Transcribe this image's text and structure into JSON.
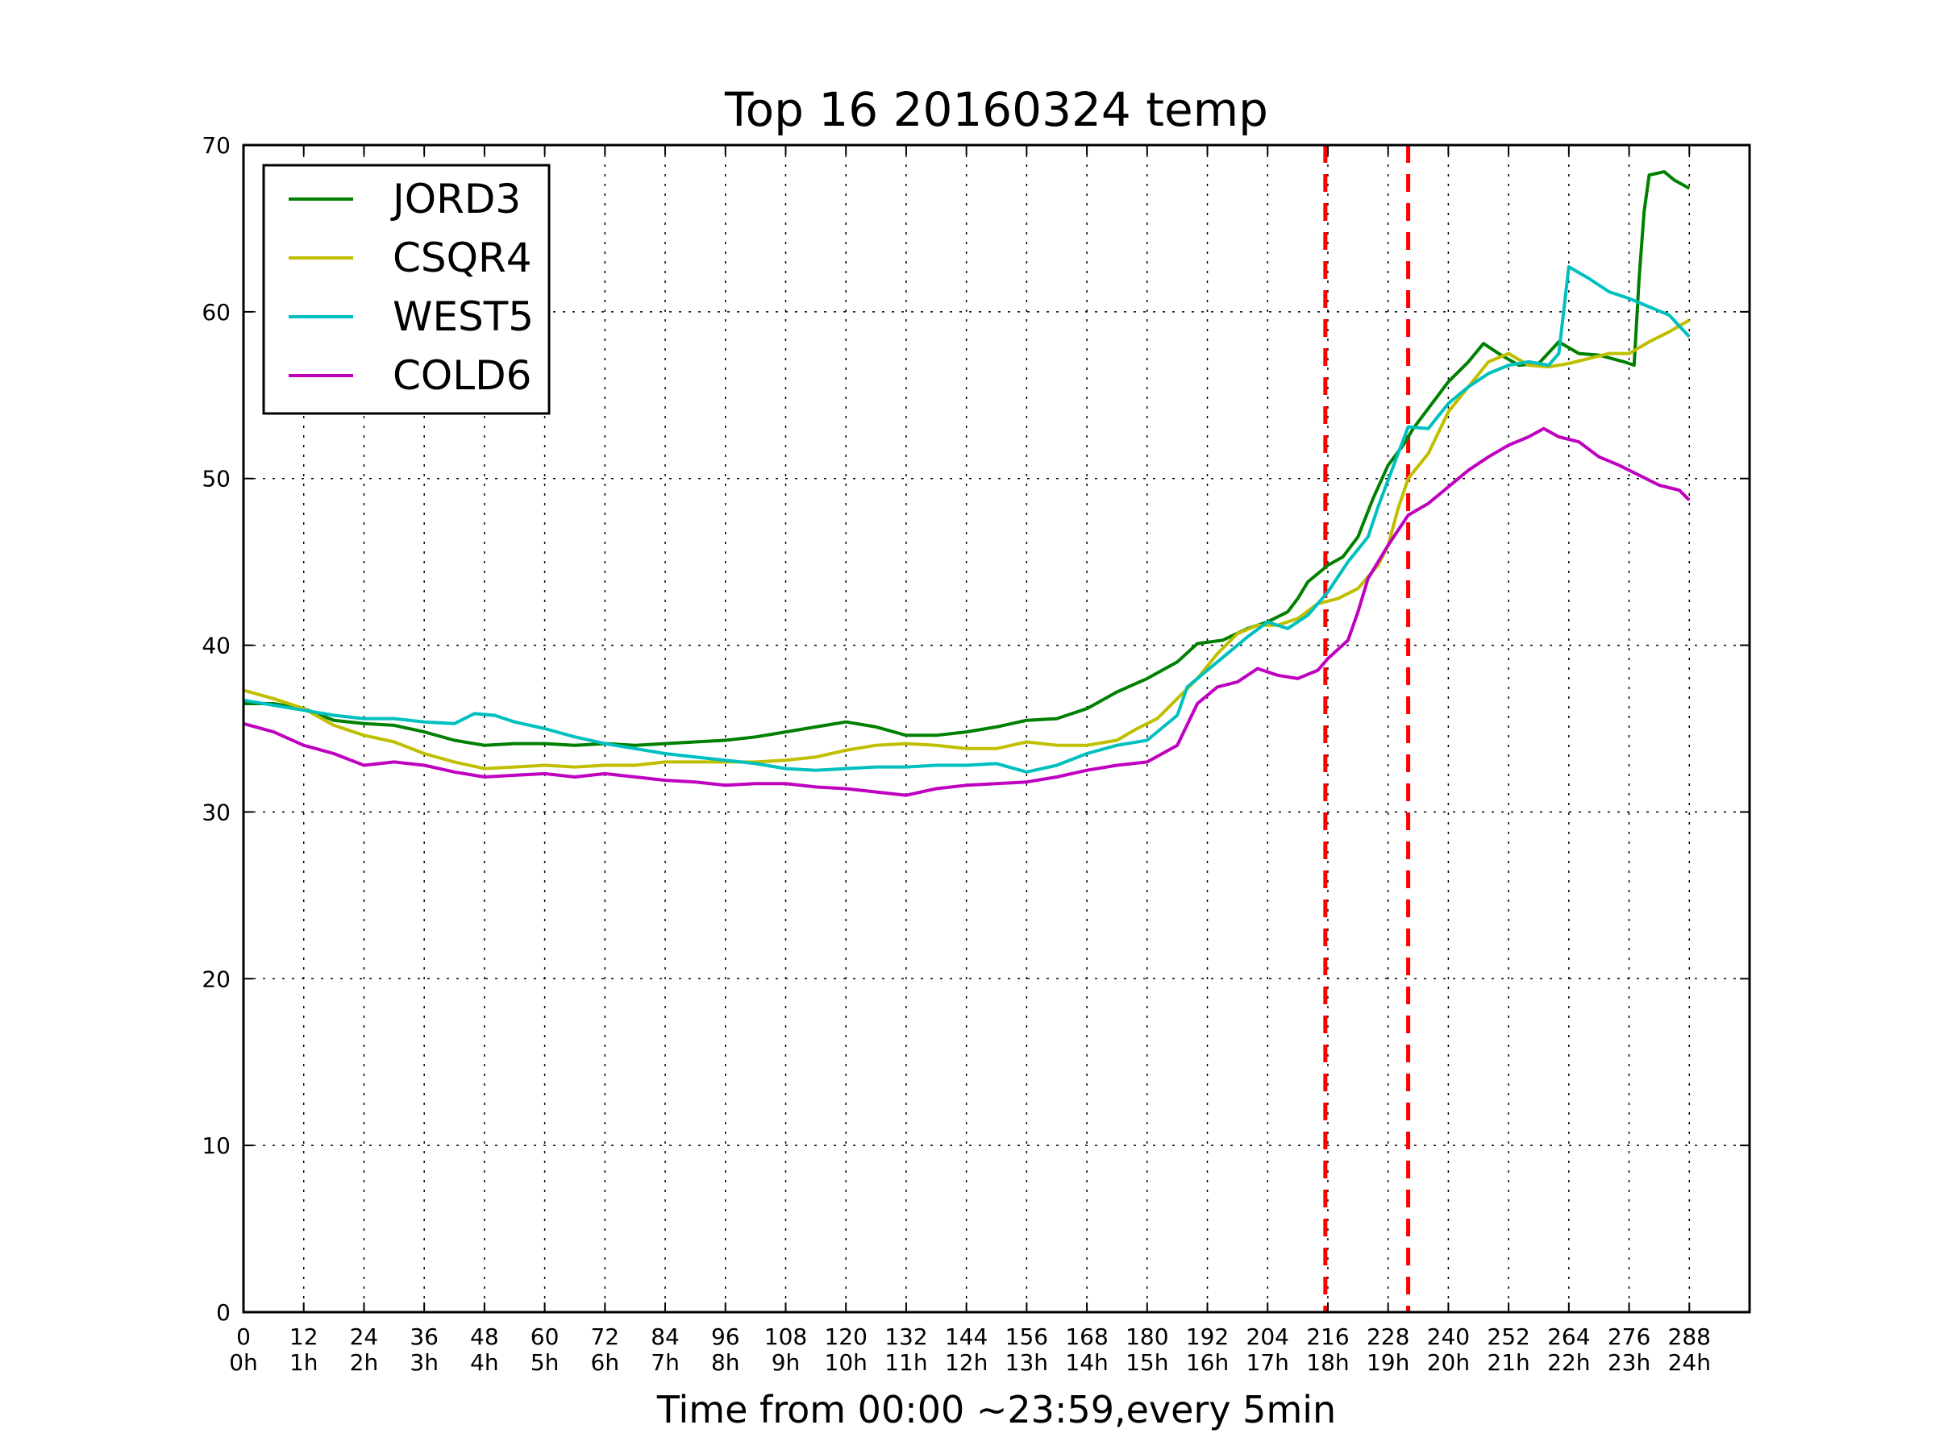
{
  "chart_data": {
    "type": "line",
    "title": "Top 16 20160324 temp",
    "xlabel": "Time from 00:00 ~23:59,every 5min",
    "ylabel": "",
    "xlim": [
      0,
      300
    ],
    "ylim": [
      0,
      70
    ],
    "grid": true,
    "legend_position": "top-left",
    "xticks": [
      0,
      12,
      24,
      36,
      48,
      60,
      72,
      84,
      96,
      108,
      120,
      132,
      144,
      156,
      168,
      180,
      192,
      204,
      216,
      228,
      240,
      252,
      264,
      276,
      288
    ],
    "xtick_labels": [
      "0\n0h",
      "12\n1h",
      "24\n2h",
      "36\n3h",
      "48\n4h",
      "60\n5h",
      "72\n6h",
      "84\n7h",
      "96\n8h",
      "108\n9h",
      "120\n10h",
      "132\n11h",
      "144\n12h",
      "156\n13h",
      "168\n14h",
      "180\n15h",
      "192\n16h",
      "204\n17h",
      "216\n18h",
      "228\n19h",
      "240\n20h",
      "252\n21h",
      "264\n22h",
      "276\n23h",
      "288\n24h"
    ],
    "yticks": [
      0,
      10,
      20,
      30,
      40,
      50,
      60,
      70
    ],
    "vlines": [
      {
        "x": 215.5,
        "color": "#ff0000",
        "style": "dashed"
      },
      {
        "x": 232,
        "color": "#ff0000",
        "style": "dashed"
      }
    ],
    "series": [
      {
        "name": "JORD3",
        "color": "#008000",
        "points": [
          [
            0,
            36.5
          ],
          [
            6,
            36.5
          ],
          [
            12,
            36.2
          ],
          [
            18,
            35.5
          ],
          [
            24,
            35.3
          ],
          [
            30,
            35.2
          ],
          [
            36,
            34.8
          ],
          [
            42,
            34.3
          ],
          [
            48,
            34.0
          ],
          [
            54,
            34.1
          ],
          [
            60,
            34.1
          ],
          [
            66,
            34.0
          ],
          [
            72,
            34.1
          ],
          [
            78,
            34.0
          ],
          [
            84,
            34.1
          ],
          [
            90,
            34.2
          ],
          [
            96,
            34.3
          ],
          [
            102,
            34.5
          ],
          [
            108,
            34.8
          ],
          [
            114,
            35.1
          ],
          [
            120,
            35.4
          ],
          [
            126,
            35.1
          ],
          [
            132,
            34.6
          ],
          [
            138,
            34.6
          ],
          [
            144,
            34.8
          ],
          [
            150,
            35.1
          ],
          [
            156,
            35.5
          ],
          [
            162,
            35.6
          ],
          [
            168,
            36.2
          ],
          [
            174,
            37.2
          ],
          [
            180,
            38.0
          ],
          [
            186,
            39.0
          ],
          [
            190,
            40.1
          ],
          [
            195,
            40.3
          ],
          [
            200,
            41.0
          ],
          [
            204,
            41.4
          ],
          [
            208,
            42.0
          ],
          [
            210,
            42.8
          ],
          [
            212,
            43.8
          ],
          [
            216,
            44.8
          ],
          [
            219,
            45.3
          ],
          [
            222,
            46.5
          ],
          [
            225,
            48.8
          ],
          [
            228,
            50.8
          ],
          [
            231,
            52.0
          ],
          [
            233,
            53.0
          ],
          [
            236,
            54.2
          ],
          [
            240,
            55.8
          ],
          [
            244,
            57.0
          ],
          [
            247,
            58.1
          ],
          [
            250,
            57.5
          ],
          [
            254,
            56.8
          ],
          [
            258,
            56.9
          ],
          [
            262,
            58.2
          ],
          [
            266,
            57.5
          ],
          [
            270,
            57.4
          ],
          [
            275,
            57.0
          ],
          [
            277,
            56.8
          ],
          [
            278,
            62.0
          ],
          [
            279,
            66.0
          ],
          [
            280,
            68.2
          ],
          [
            283,
            68.4
          ],
          [
            285,
            67.9
          ],
          [
            288,
            67.4
          ]
        ]
      },
      {
        "name": "CSQR4",
        "color": "#bfbf00",
        "points": [
          [
            0,
            37.3
          ],
          [
            6,
            36.8
          ],
          [
            12,
            36.2
          ],
          [
            18,
            35.2
          ],
          [
            24,
            34.6
          ],
          [
            30,
            34.2
          ],
          [
            36,
            33.5
          ],
          [
            42,
            33.0
          ],
          [
            48,
            32.6
          ],
          [
            54,
            32.7
          ],
          [
            60,
            32.8
          ],
          [
            66,
            32.7
          ],
          [
            72,
            32.8
          ],
          [
            78,
            32.8
          ],
          [
            84,
            33.0
          ],
          [
            90,
            33.0
          ],
          [
            96,
            33.0
          ],
          [
            102,
            33.0
          ],
          [
            108,
            33.1
          ],
          [
            114,
            33.3
          ],
          [
            120,
            33.7
          ],
          [
            126,
            34.0
          ],
          [
            132,
            34.1
          ],
          [
            138,
            34.0
          ],
          [
            144,
            33.8
          ],
          [
            150,
            33.8
          ],
          [
            156,
            34.2
          ],
          [
            162,
            34.0
          ],
          [
            168,
            34.0
          ],
          [
            174,
            34.3
          ],
          [
            178,
            35.0
          ],
          [
            182,
            35.6
          ],
          [
            186,
            36.8
          ],
          [
            190,
            38.0
          ],
          [
            194,
            39.5
          ],
          [
            198,
            40.7
          ],
          [
            202,
            41.2
          ],
          [
            206,
            41.2
          ],
          [
            210,
            41.6
          ],
          [
            214,
            42.5
          ],
          [
            218,
            42.8
          ],
          [
            222,
            43.4
          ],
          [
            226,
            44.8
          ],
          [
            228,
            46.0
          ],
          [
            230,
            48.2
          ],
          [
            232,
            50.0
          ],
          [
            236,
            51.5
          ],
          [
            240,
            54.0
          ],
          [
            244,
            55.5
          ],
          [
            248,
            57.0
          ],
          [
            252,
            57.5
          ],
          [
            256,
            56.8
          ],
          [
            260,
            56.7
          ],
          [
            264,
            56.9
          ],
          [
            268,
            57.2
          ],
          [
            272,
            57.5
          ],
          [
            276,
            57.5
          ],
          [
            280,
            58.2
          ],
          [
            284,
            58.8
          ],
          [
            288,
            59.5
          ]
        ]
      },
      {
        "name": "WEST5",
        "color": "#00bfbf",
        "points": [
          [
            0,
            36.7
          ],
          [
            6,
            36.4
          ],
          [
            12,
            36.1
          ],
          [
            18,
            35.8
          ],
          [
            24,
            35.6
          ],
          [
            30,
            35.6
          ],
          [
            36,
            35.4
          ],
          [
            42,
            35.3
          ],
          [
            46,
            35.9
          ],
          [
            50,
            35.8
          ],
          [
            54,
            35.4
          ],
          [
            60,
            35.0
          ],
          [
            66,
            34.5
          ],
          [
            72,
            34.1
          ],
          [
            78,
            33.8
          ],
          [
            84,
            33.5
          ],
          [
            90,
            33.3
          ],
          [
            96,
            33.1
          ],
          [
            102,
            32.9
          ],
          [
            108,
            32.6
          ],
          [
            114,
            32.5
          ],
          [
            120,
            32.6
          ],
          [
            126,
            32.7
          ],
          [
            132,
            32.7
          ],
          [
            138,
            32.8
          ],
          [
            144,
            32.8
          ],
          [
            150,
            32.9
          ],
          [
            156,
            32.4
          ],
          [
            162,
            32.8
          ],
          [
            168,
            33.5
          ],
          [
            174,
            34.0
          ],
          [
            180,
            34.3
          ],
          [
            186,
            35.8
          ],
          [
            188,
            37.5
          ],
          [
            192,
            38.5
          ],
          [
            196,
            39.5
          ],
          [
            200,
            40.5
          ],
          [
            204,
            41.4
          ],
          [
            208,
            41.0
          ],
          [
            212,
            41.8
          ],
          [
            216,
            43.2
          ],
          [
            220,
            45.0
          ],
          [
            224,
            46.5
          ],
          [
            226,
            48.3
          ],
          [
            230,
            51.5
          ],
          [
            232,
            53.1
          ],
          [
            236,
            53.0
          ],
          [
            240,
            54.5
          ],
          [
            244,
            55.5
          ],
          [
            248,
            56.3
          ],
          [
            252,
            56.8
          ],
          [
            256,
            57.0
          ],
          [
            260,
            56.8
          ],
          [
            262,
            57.5
          ],
          [
            264,
            62.7
          ],
          [
            268,
            62.0
          ],
          [
            272,
            61.2
          ],
          [
            276,
            60.8
          ],
          [
            280,
            60.3
          ],
          [
            284,
            59.8
          ],
          [
            288,
            58.5
          ]
        ]
      },
      {
        "name": "COLD6",
        "color": "#bf00bf",
        "points": [
          [
            0,
            35.3
          ],
          [
            6,
            34.8
          ],
          [
            12,
            34.0
          ],
          [
            18,
            33.5
          ],
          [
            24,
            32.8
          ],
          [
            30,
            33.0
          ],
          [
            36,
            32.8
          ],
          [
            42,
            32.4
          ],
          [
            48,
            32.1
          ],
          [
            54,
            32.2
          ],
          [
            60,
            32.3
          ],
          [
            66,
            32.1
          ],
          [
            72,
            32.3
          ],
          [
            78,
            32.1
          ],
          [
            84,
            31.9
          ],
          [
            90,
            31.8
          ],
          [
            96,
            31.6
          ],
          [
            102,
            31.7
          ],
          [
            108,
            31.7
          ],
          [
            114,
            31.5
          ],
          [
            120,
            31.4
          ],
          [
            126,
            31.2
          ],
          [
            132,
            31.0
          ],
          [
            138,
            31.4
          ],
          [
            144,
            31.6
          ],
          [
            150,
            31.7
          ],
          [
            156,
            31.8
          ],
          [
            162,
            32.1
          ],
          [
            168,
            32.5
          ],
          [
            174,
            32.8
          ],
          [
            180,
            33.0
          ],
          [
            186,
            34.0
          ],
          [
            190,
            36.5
          ],
          [
            194,
            37.5
          ],
          [
            198,
            37.8
          ],
          [
            202,
            38.6
          ],
          [
            206,
            38.2
          ],
          [
            210,
            38.0
          ],
          [
            214,
            38.5
          ],
          [
            216,
            39.2
          ],
          [
            220,
            40.3
          ],
          [
            222,
            42.0
          ],
          [
            224,
            44.0
          ],
          [
            228,
            46.0
          ],
          [
            232,
            47.8
          ],
          [
            236,
            48.5
          ],
          [
            240,
            49.5
          ],
          [
            244,
            50.5
          ],
          [
            248,
            51.3
          ],
          [
            252,
            52.0
          ],
          [
            256,
            52.5
          ],
          [
            259,
            53.0
          ],
          [
            262,
            52.5
          ],
          [
            266,
            52.2
          ],
          [
            270,
            51.3
          ],
          [
            274,
            50.8
          ],
          [
            278,
            50.2
          ],
          [
            282,
            49.6
          ],
          [
            286,
            49.3
          ],
          [
            288,
            48.7
          ]
        ]
      }
    ]
  }
}
